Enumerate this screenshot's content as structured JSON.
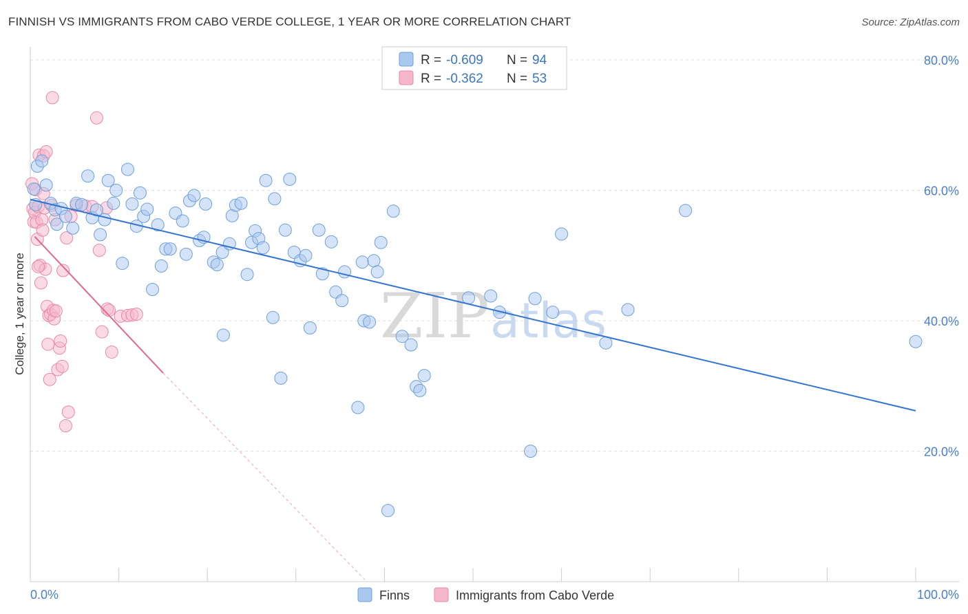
{
  "title": "FINNISH VS IMMIGRANTS FROM CABO VERDE COLLEGE, 1 YEAR OR MORE CORRELATION CHART",
  "source": "Source: ZipAtlas.com",
  "watermark": {
    "zip": "ZIP",
    "atlas": "atlas"
  },
  "legend_box": {
    "rows": [
      {
        "r_label": "R =",
        "r_value": "-0.609",
        "n_label": "N =",
        "n_value": "94"
      },
      {
        "r_label": "R =",
        "r_value": "-0.362",
        "n_label": "N =",
        "n_value": "53"
      }
    ]
  },
  "bottom_legend": [
    "Finns",
    "Immigrants from Cabo Verde"
  ],
  "colors": {
    "finns_fill": "#a9c8ef",
    "finns_stroke": "#6f9fd8",
    "finns_line": "#3374cf",
    "cabo_fill": "#f5b8cb",
    "cabo_stroke": "#e888a8",
    "cabo_line": "#e0688f",
    "grid": "#dddddd",
    "tick_label": "#4a7fcc"
  },
  "chart_data": {
    "type": "scatter",
    "title": "FINNISH VS IMMIGRANTS FROM CABO VERDE COLLEGE, 1 YEAR OR MORE CORRELATION CHART",
    "xlabel": "",
    "ylabel": "College, 1 year or more",
    "xlim": [
      0,
      100
    ],
    "ylim": [
      0,
      82
    ],
    "x_tick_labels": [
      "0.0%",
      "100.0%"
    ],
    "y_ticks": [
      20,
      40,
      60,
      80
    ],
    "y_tick_labels": [
      "20.0%",
      "40.0%",
      "60.0%",
      "80.0%"
    ],
    "grid": true,
    "legend_position": "top-center",
    "series": [
      {
        "name": "Finns",
        "points": [
          [
            0.4,
            60.2
          ],
          [
            0.6,
            57.8
          ],
          [
            0.8,
            63.7
          ],
          [
            1.3,
            64.5
          ],
          [
            1.8,
            60.8
          ],
          [
            2.3,
            58.0
          ],
          [
            2.8,
            57.0
          ],
          [
            3.0,
            54.8
          ],
          [
            3.5,
            57.2
          ],
          [
            4.0,
            56.0
          ],
          [
            4.8,
            54.2
          ],
          [
            5.2,
            58.0
          ],
          [
            5.8,
            57.8
          ],
          [
            6.5,
            62.2
          ],
          [
            7.0,
            55.8
          ],
          [
            7.5,
            57.0
          ],
          [
            7.9,
            53.2
          ],
          [
            8.4,
            55.5
          ],
          [
            8.8,
            61.5
          ],
          [
            9.4,
            58.0
          ],
          [
            9.7,
            60.0
          ],
          [
            10.4,
            48.8
          ],
          [
            11.0,
            63.2
          ],
          [
            11.5,
            57.9
          ],
          [
            12.0,
            54.5
          ],
          [
            12.4,
            59.6
          ],
          [
            12.8,
            56.0
          ],
          [
            13.2,
            57.1
          ],
          [
            13.8,
            44.8
          ],
          [
            14.4,
            54.7
          ],
          [
            14.8,
            48.4
          ],
          [
            15.3,
            51.0
          ],
          [
            15.8,
            51.0
          ],
          [
            16.4,
            56.5
          ],
          [
            17.2,
            55.3
          ],
          [
            17.6,
            50.2
          ],
          [
            18.0,
            58.4
          ],
          [
            18.5,
            59.2
          ],
          [
            19.1,
            52.3
          ],
          [
            19.6,
            52.8
          ],
          [
            19.8,
            57.9
          ],
          [
            20.7,
            49.0
          ],
          [
            21.1,
            48.6
          ],
          [
            21.7,
            50.5
          ],
          [
            21.8,
            37.8
          ],
          [
            22.5,
            51.8
          ],
          [
            22.8,
            56.1
          ],
          [
            23.2,
            57.7
          ],
          [
            23.8,
            58.0
          ],
          [
            24.5,
            47.1
          ],
          [
            25.0,
            52.0
          ],
          [
            25.4,
            53.8
          ],
          [
            25.8,
            52.6
          ],
          [
            26.3,
            51.2
          ],
          [
            26.6,
            61.5
          ],
          [
            27.4,
            40.5
          ],
          [
            27.6,
            58.7
          ],
          [
            28.3,
            31.2
          ],
          [
            28.8,
            53.9
          ],
          [
            29.3,
            61.7
          ],
          [
            29.8,
            50.5
          ],
          [
            30.5,
            49.2
          ],
          [
            31.1,
            50.0
          ],
          [
            31.6,
            38.9
          ],
          [
            32.6,
            53.9
          ],
          [
            33.0,
            47.2
          ],
          [
            34.0,
            52.1
          ],
          [
            34.5,
            44.4
          ],
          [
            35.2,
            43.1
          ],
          [
            35.5,
            47.5
          ],
          [
            37.0,
            26.7
          ],
          [
            37.5,
            49.0
          ],
          [
            37.7,
            40.0
          ],
          [
            38.3,
            39.8
          ],
          [
            38.8,
            49.2
          ],
          [
            39.2,
            47.5
          ],
          [
            39.6,
            52.0
          ],
          [
            40.4,
            10.9
          ],
          [
            41.0,
            56.8
          ],
          [
            42.0,
            37.6
          ],
          [
            43.0,
            36.3
          ],
          [
            43.6,
            29.9
          ],
          [
            44.0,
            29.3
          ],
          [
            44.5,
            31.6
          ],
          [
            49.5,
            43.5
          ],
          [
            52.0,
            43.8
          ],
          [
            53.0,
            41.3
          ],
          [
            56.5,
            20.0
          ],
          [
            57.0,
            43.4
          ],
          [
            59.0,
            41.3
          ],
          [
            60.0,
            53.3
          ],
          [
            65.0,
            36.6
          ],
          [
            67.5,
            41.7
          ],
          [
            74.0,
            56.9
          ],
          [
            100.0,
            36.8
          ]
        ],
        "regression": {
          "x1": 0,
          "y1": 58.6,
          "x2": 100,
          "y2": 26.2
        }
      },
      {
        "name": "Immigrants from Cabo Verde",
        "points": [
          [
            0.2,
            61.0
          ],
          [
            0.3,
            57.2
          ],
          [
            0.4,
            55.2
          ],
          [
            0.5,
            56.6
          ],
          [
            0.6,
            60.1
          ],
          [
            0.7,
            55.1
          ],
          [
            0.8,
            52.5
          ],
          [
            0.9,
            57.5
          ],
          [
            1.0,
            65.4
          ],
          [
            1.1,
            48.5
          ],
          [
            1.2,
            45.8
          ],
          [
            1.3,
            55.5
          ],
          [
            1.4,
            53.9
          ],
          [
            1.5,
            65.3
          ],
          [
            1.6,
            57.3
          ],
          [
            1.7,
            47.9
          ],
          [
            1.8,
            65.9
          ],
          [
            1.9,
            42.2
          ],
          [
            2.0,
            36.4
          ],
          [
            2.1,
            40.8
          ],
          [
            2.2,
            31.0
          ],
          [
            2.3,
            41.0
          ],
          [
            2.4,
            57.7
          ],
          [
            2.5,
            74.2
          ],
          [
            2.6,
            41.6
          ],
          [
            2.7,
            40.3
          ],
          [
            2.8,
            55.5
          ],
          [
            2.9,
            41.5
          ],
          [
            3.1,
            32.5
          ],
          [
            3.3,
            35.8
          ],
          [
            3.4,
            36.9
          ],
          [
            3.6,
            33.0
          ],
          [
            3.7,
            47.7
          ],
          [
            4.0,
            23.9
          ],
          [
            4.1,
            52.7
          ],
          [
            4.3,
            26.0
          ],
          [
            4.6,
            56.0
          ],
          [
            5.2,
            57.7
          ],
          [
            6.2,
            57.6
          ],
          [
            7.0,
            57.5
          ],
          [
            7.5,
            71.1
          ],
          [
            7.8,
            50.8
          ],
          [
            8.1,
            38.3
          ],
          [
            8.6,
            57.3
          ],
          [
            8.7,
            41.8
          ],
          [
            8.9,
            41.6
          ],
          [
            9.2,
            35.2
          ],
          [
            10.2,
            40.7
          ],
          [
            11.0,
            40.8
          ],
          [
            11.5,
            40.9
          ],
          [
            12.0,
            41.0
          ],
          [
            1.5,
            59.5
          ],
          [
            0.9,
            48.3
          ]
        ],
        "regression": {
          "x1": 0.5,
          "y1": 52.9,
          "x2": 15,
          "y2": 32.0
        },
        "regression_extension": {
          "x1": 15,
          "y1": 32.0,
          "x2": 38,
          "y2": 0
        }
      }
    ]
  }
}
